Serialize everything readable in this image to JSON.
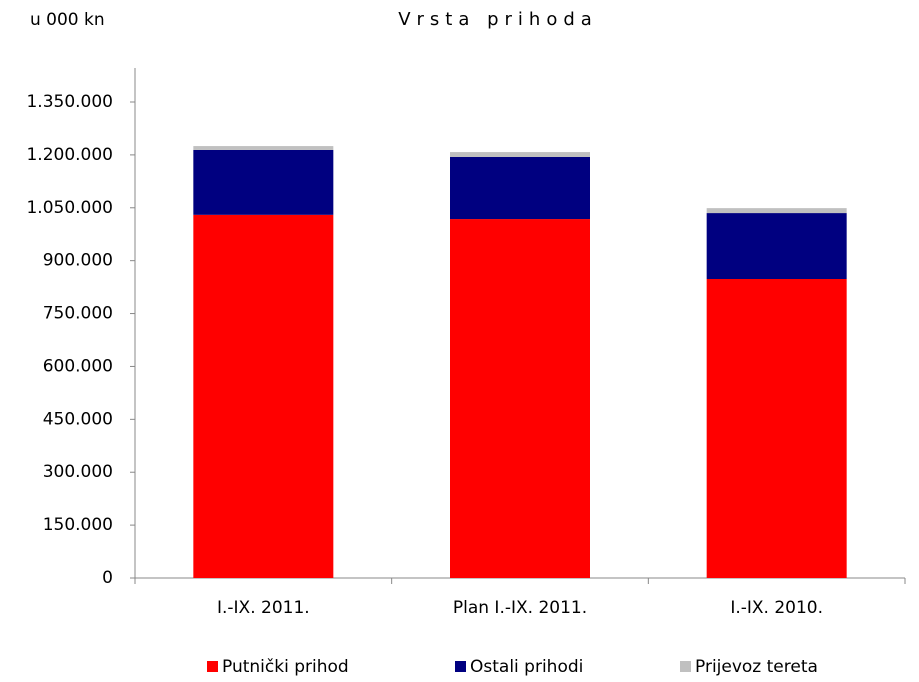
{
  "chart_data": {
    "type": "stacked_bar",
    "title": "Vrsta prihoda",
    "unit_label": "u 000 kn",
    "categories": [
      "I.-IX. 2011.",
      "Plan I.-IX. 2011.",
      "I.-IX. 2010."
    ],
    "series": [
      {
        "name": "Putnički prihod",
        "color": "#ff0000",
        "values": [
          1030000,
          1018000,
          848000
        ]
      },
      {
        "name": "Ostali prihodi",
        "color": "#000080",
        "values": [
          184000,
          176000,
          187000
        ]
      },
      {
        "name": "Prijevoz tereta",
        "color": "#c0c0c0",
        "values": [
          11000,
          14000,
          14000
        ]
      }
    ],
    "ylim": [
      0,
      1350000
    ],
    "yticks": [
      0,
      {
        "value": 150000,
        "label": "150.000"
      },
      {
        "value": 300000,
        "label": "300.000"
      },
      {
        "value": 450000,
        "label": "450.000"
      },
      {
        "value": 600000,
        "label": "600.000"
      },
      {
        "value": 750000,
        "label": "750.000"
      },
      {
        "value": 900000,
        "label": "900.000"
      },
      {
        "value": 1050000,
        "label": "1.050.000"
      },
      {
        "value": 1200000,
        "label": "1.200.000"
      },
      {
        "value": 1350000,
        "label": "1.350.000"
      }
    ],
    "grid": false,
    "legend": "bottom"
  }
}
